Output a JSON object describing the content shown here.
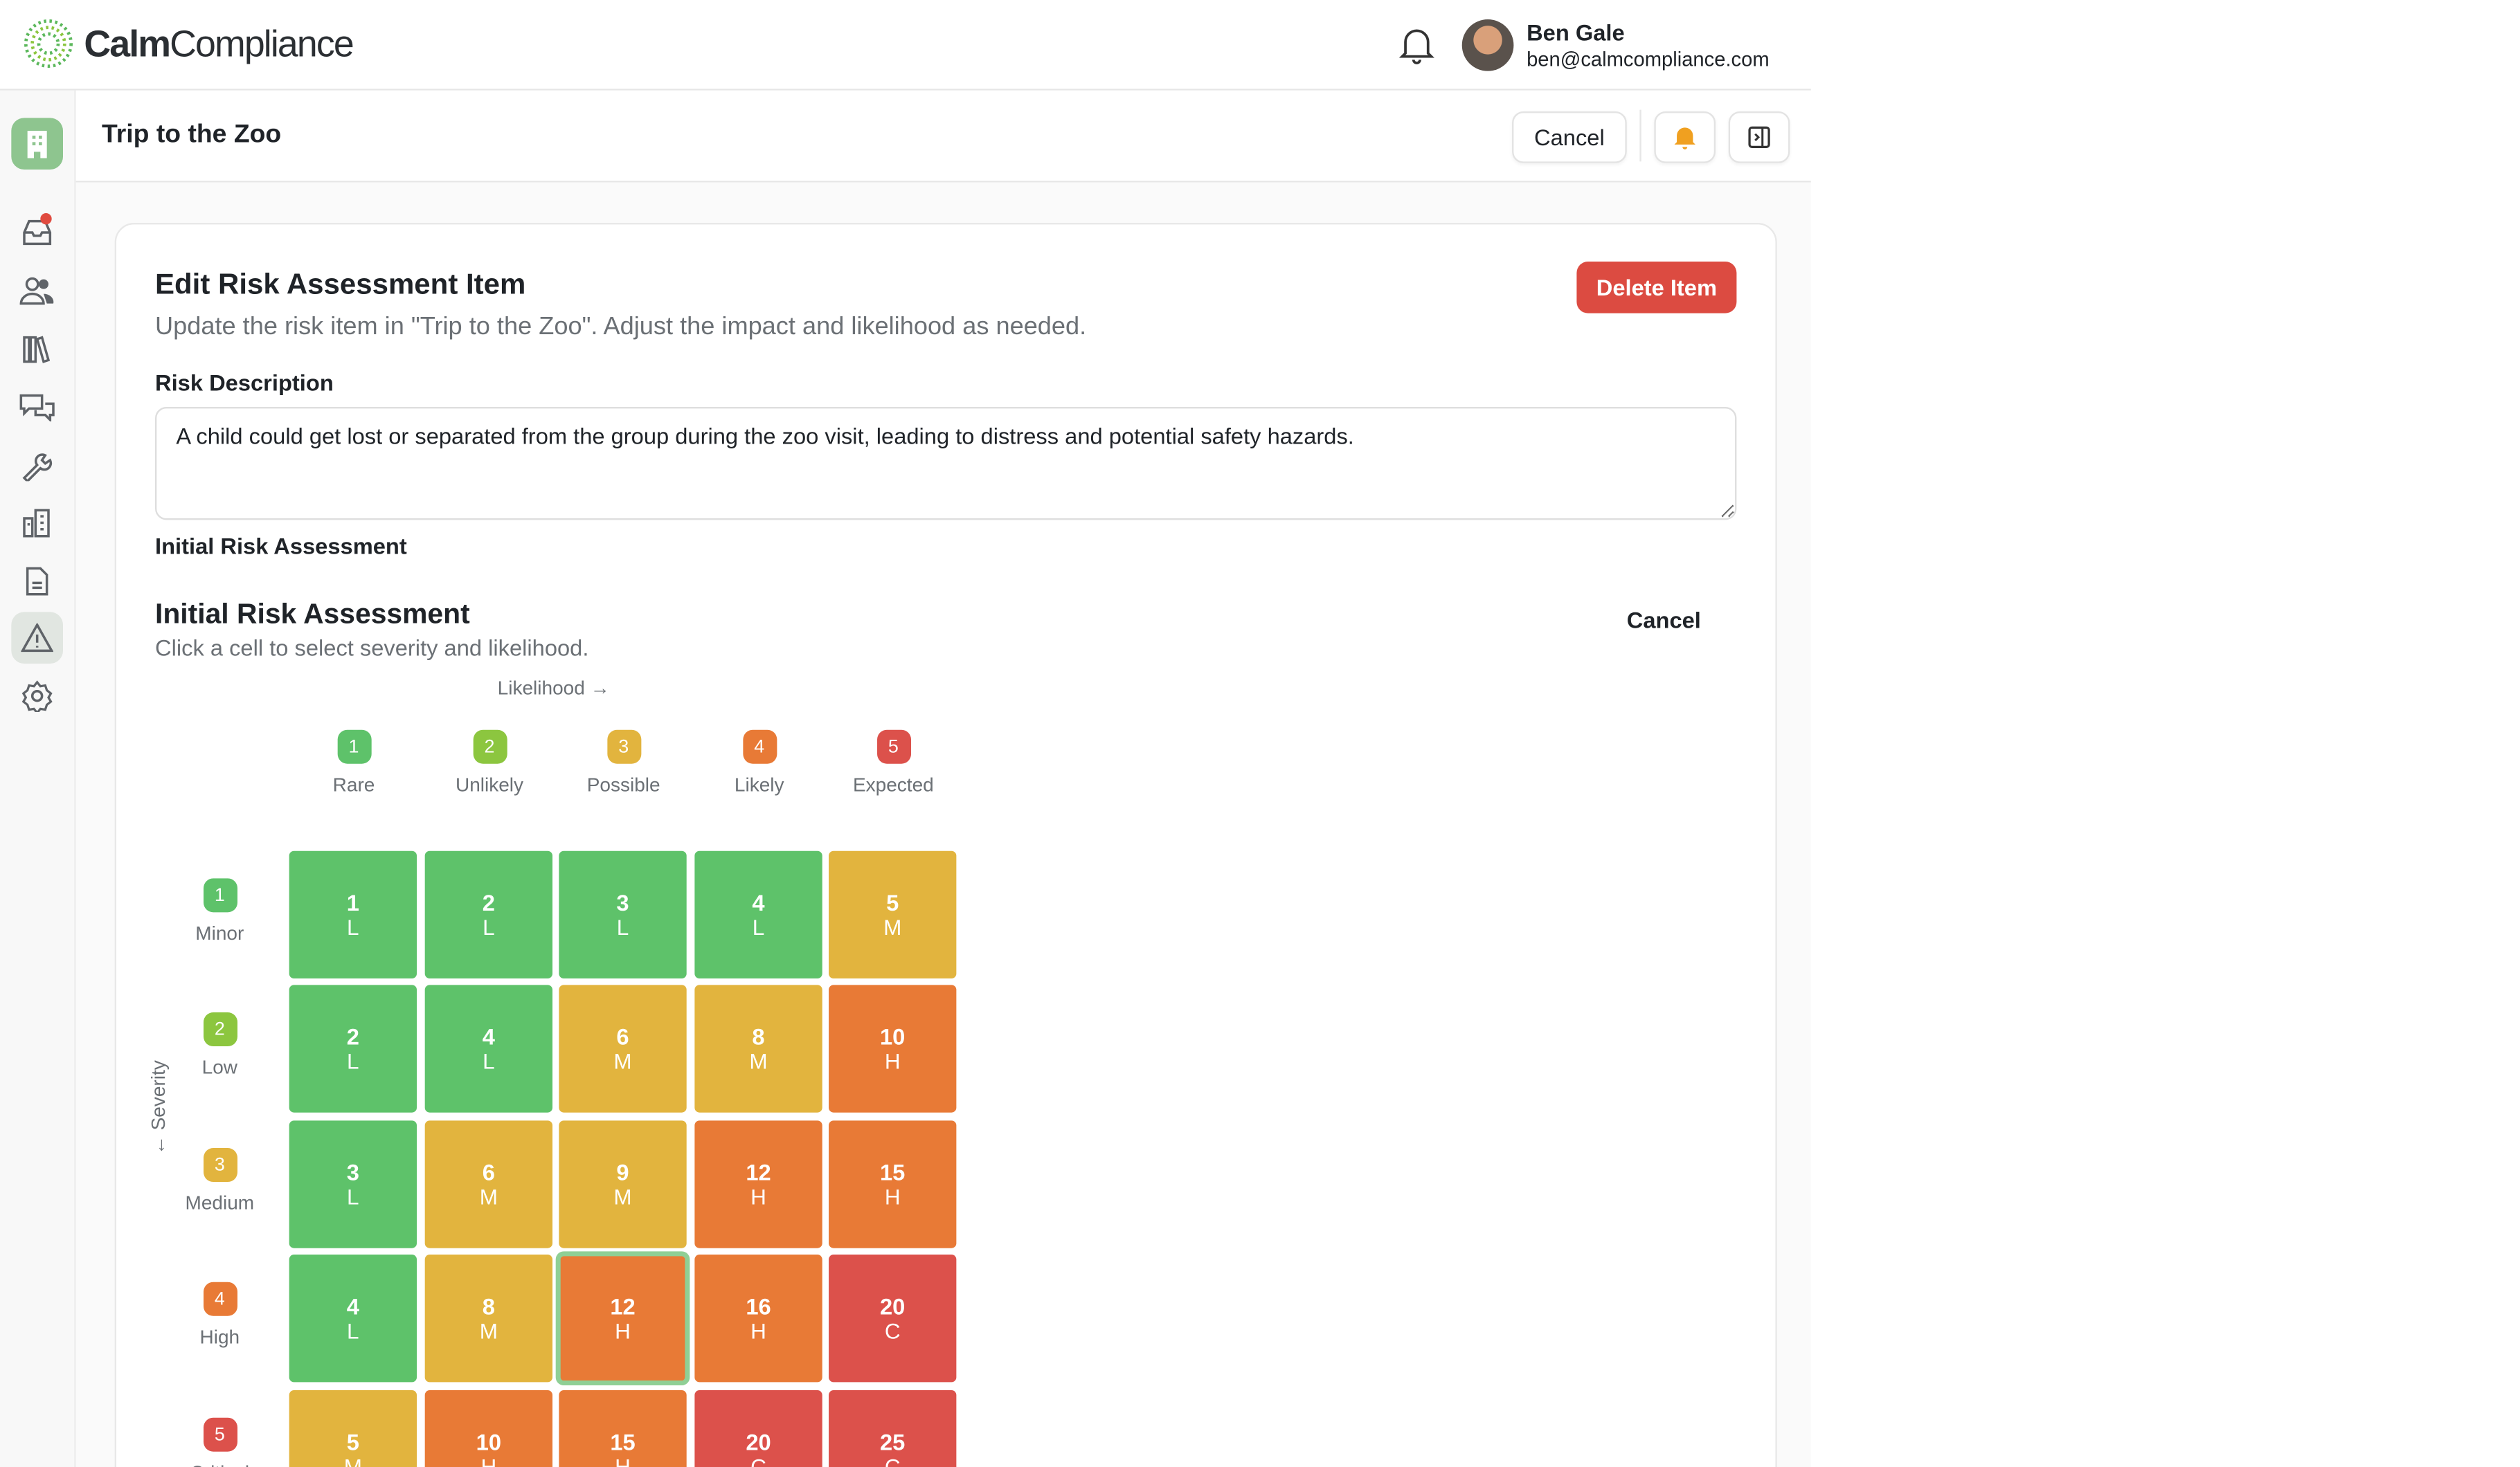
{
  "app": {
    "brand_bold": "Calm",
    "brand_light": "Compliance"
  },
  "user": {
    "name": "Ben Gale",
    "email": "ben@calmcompliance.com"
  },
  "sidebar": {
    "items": [
      "inbox",
      "people",
      "library",
      "messages",
      "tools",
      "buildings",
      "documents",
      "risks",
      "settings"
    ],
    "active": "risks"
  },
  "header": {
    "title": "Trip to the Zoo",
    "cancel_label": "Cancel"
  },
  "form": {
    "title": "Edit Risk Assessment Item",
    "subtitle": "Update the risk item in \"Trip to the Zoo\". Adjust the impact and likelihood as needed.",
    "delete_label": "Delete Item",
    "description_label": "Risk Description",
    "description_value": "A child could get lost or separated from the group during the zoo visit, leading to distress and potential safety hazards.",
    "initial_label": "Initial Risk Assessment"
  },
  "matrix": {
    "title": "Initial Risk Assessment",
    "subtitle": "Click a cell to select severity and likelihood.",
    "cancel_label": "Cancel",
    "likelihood_axis": "Likelihood →",
    "severity_axis": "← Severity",
    "likelihood": [
      {
        "n": "1",
        "label": "Rare"
      },
      {
        "n": "2",
        "label": "Unlikely"
      },
      {
        "n": "3",
        "label": "Possible"
      },
      {
        "n": "4",
        "label": "Likely"
      },
      {
        "n": "5",
        "label": "Expected"
      }
    ],
    "severity": [
      {
        "n": "1",
        "label": "Minor"
      },
      {
        "n": "2",
        "label": "Low"
      },
      {
        "n": "3",
        "label": "Medium"
      },
      {
        "n": "4",
        "label": "High"
      },
      {
        "n": "5",
        "label": "Critical"
      }
    ],
    "level_colors": {
      "L": "#5ec26a",
      "M": "#e2b43e",
      "H": "#e87a36",
      "C": "#dc514b"
    },
    "badge_colors": [
      "#5ec26a",
      "#8cc63f",
      "#e2b43e",
      "#e87a36",
      "#dc514b"
    ],
    "cells": [
      [
        {
          "v": "1",
          "r": "L"
        },
        {
          "v": "2",
          "r": "L"
        },
        {
          "v": "3",
          "r": "L"
        },
        {
          "v": "4",
          "r": "L"
        },
        {
          "v": "5",
          "r": "M"
        }
      ],
      [
        {
          "v": "2",
          "r": "L"
        },
        {
          "v": "4",
          "r": "L"
        },
        {
          "v": "6",
          "r": "M"
        },
        {
          "v": "8",
          "r": "M"
        },
        {
          "v": "10",
          "r": "H"
        }
      ],
      [
        {
          "v": "3",
          "r": "L"
        },
        {
          "v": "6",
          "r": "M"
        },
        {
          "v": "9",
          "r": "M"
        },
        {
          "v": "12",
          "r": "H"
        },
        {
          "v": "15",
          "r": "H"
        }
      ],
      [
        {
          "v": "4",
          "r": "L"
        },
        {
          "v": "8",
          "r": "M"
        },
        {
          "v": "12",
          "r": "H"
        },
        {
          "v": "16",
          "r": "H"
        },
        {
          "v": "20",
          "r": "C"
        }
      ],
      [
        {
          "v": "5",
          "r": "M"
        },
        {
          "v": "10",
          "r": "H"
        },
        {
          "v": "15",
          "r": "H"
        },
        {
          "v": "20",
          "r": "C"
        },
        {
          "v": "25",
          "r": "C"
        }
      ]
    ],
    "selected": {
      "severity": 4,
      "likelihood": 3
    }
  }
}
